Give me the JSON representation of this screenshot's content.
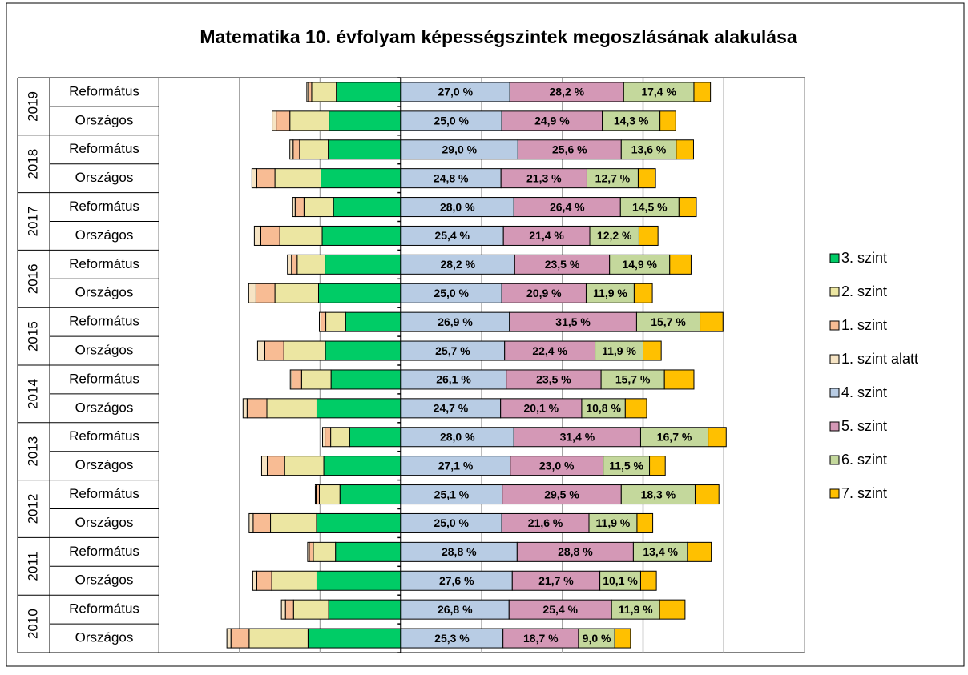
{
  "chart_data": {
    "type": "diverging_stacked_bar",
    "title": "Matematika 10. évfolyam képességszintek megoszlásának alakulása",
    "groups": [
      "2019",
      "2018",
      "2017",
      "2016",
      "2015",
      "2014",
      "2013",
      "2012",
      "2011",
      "2010"
    ],
    "categories": [
      "Református",
      "Országos",
      "Református",
      "Országos",
      "Református",
      "Országos",
      "Református",
      "Országos",
      "Református",
      "Országos",
      "Református",
      "Országos",
      "Református",
      "Országos",
      "Református",
      "Országos",
      "Református",
      "Országos",
      "Református",
      "Országos"
    ],
    "xlim": [
      -60,
      100
    ],
    "xticks": [
      -60,
      -40,
      -20,
      0,
      20,
      40,
      60,
      80,
      100
    ],
    "grid": true,
    "legend": "right",
    "series": [
      {
        "name": "3. szint",
        "color": "#00cc66",
        "values": [
          -16.0,
          -17.8,
          -18.0,
          -19.8,
          -16.7,
          -19.5,
          -18.8,
          -20.4,
          -13.7,
          -18.7,
          -17.3,
          -20.8,
          -12.7,
          -19.1,
          -15.1,
          -20.9,
          -16.2,
          -20.8,
          -17.9,
          -23.0
        ]
      },
      {
        "name": "2. szint",
        "color": "#ece6a2",
        "values": [
          -6.1,
          -9.7,
          -7.1,
          -11.4,
          -7.3,
          -10.5,
          -6.9,
          -10.8,
          -4.9,
          -10.3,
          -7.3,
          -12.4,
          -4.7,
          -9.7,
          -5.1,
          -11.4,
          -5.5,
          -11.2,
          -8.7,
          -14.6
        ]
      },
      {
        "name": "1. szint",
        "color": "#f8bc94",
        "values": [
          -0.8,
          -3.4,
          -1.6,
          -4.5,
          -2.2,
          -4.7,
          -1.4,
          -4.7,
          -1.2,
          -4.7,
          -2.4,
          -4.9,
          -1.4,
          -4.3,
          -0.8,
          -4.3,
          -1.0,
          -3.7,
          -2.0,
          -4.5
        ]
      },
      {
        "name": "1. szint alatt",
        "color": "#f6e4c4",
        "values": [
          -0.4,
          -1.0,
          -0.8,
          -1.2,
          -0.6,
          -1.6,
          -1.0,
          -1.8,
          -0.4,
          -1.8,
          -0.4,
          -1.0,
          -0.6,
          -1.4,
          -0.2,
          -1.0,
          -0.4,
          -1.0,
          -1.0,
          -1.0
        ]
      },
      {
        "name": "4. szint",
        "color": "#b8cce4",
        "values": [
          27.0,
          25.0,
          29.0,
          24.8,
          28.0,
          25.4,
          28.2,
          25.0,
          26.9,
          25.7,
          26.1,
          24.7,
          28.0,
          27.1,
          25.1,
          25.0,
          28.8,
          27.6,
          26.8,
          25.3
        ],
        "value_labels": [
          "27,0 %",
          "25,0 %",
          "29,0 %",
          "24,8 %",
          "28,0 %",
          "25,4 %",
          "28,2 %",
          "25,0 %",
          "26,9 %",
          "25,7 %",
          "26,1 %",
          "24,7 %",
          "28,0 %",
          "27,1 %",
          "25,1 %",
          "25,0 %",
          "28,8 %",
          "27,6 %",
          "26,8 %",
          "25,3 %"
        ]
      },
      {
        "name": "5. szint",
        "color": "#d498b6",
        "values": [
          28.2,
          24.9,
          25.6,
          21.3,
          26.4,
          21.4,
          23.5,
          20.9,
          31.5,
          22.4,
          23.5,
          20.1,
          31.4,
          23.0,
          29.5,
          21.6,
          28.8,
          21.7,
          25.4,
          18.7
        ],
        "value_labels": [
          "28,2 %",
          "24,9 %",
          "25,6 %",
          "21,3 %",
          "26,4 %",
          "21,4 %",
          "23,5 %",
          "20,9 %",
          "31,5 %",
          "22,4 %",
          "23,5 %",
          "20,1 %",
          "31,4 %",
          "23,0 %",
          "29,5 %",
          "21,6 %",
          "28,8 %",
          "21,7 %",
          "25,4 %",
          "18,7 %"
        ]
      },
      {
        "name": "6. szint",
        "color": "#c4d89c",
        "values": [
          17.4,
          14.3,
          13.6,
          12.7,
          14.5,
          12.2,
          14.9,
          11.9,
          15.7,
          11.9,
          15.7,
          10.8,
          16.7,
          11.5,
          18.3,
          11.9,
          13.4,
          10.1,
          11.9,
          9.0
        ],
        "value_labels": [
          "17,4 %",
          "14,3 %",
          "13,6 %",
          "12,7 %",
          "14,5 %",
          "12,2 %",
          "14,9 %",
          "11,9 %",
          "15,7 %",
          "11,9 %",
          "15,7 %",
          "10,8 %",
          "16,7 %",
          "11,5 %",
          "18,3 %",
          "11,9 %",
          "13,4 %",
          "10,1 %",
          "11,9 %",
          "9,0 %"
        ]
      },
      {
        "name": "7. szint",
        "color": "#ffc000",
        "values": [
          4.1,
          3.9,
          4.3,
          4.3,
          4.3,
          4.7,
          5.3,
          4.5,
          5.7,
          4.5,
          7.3,
          5.3,
          4.5,
          3.9,
          5.9,
          3.9,
          5.9,
          3.9,
          6.3,
          3.9
        ]
      }
    ]
  }
}
